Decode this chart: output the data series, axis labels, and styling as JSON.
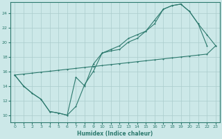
{
  "xlabel": "Humidex (Indice chaleur)",
  "bg_color": "#cce8e8",
  "line_color": "#2d7a6e",
  "grid_color": "#aacccc",
  "xlim": [
    -0.5,
    23.5
  ],
  "ylim": [
    9.0,
    25.5
  ],
  "xticks": [
    0,
    1,
    2,
    3,
    4,
    5,
    6,
    7,
    8,
    9,
    10,
    11,
    12,
    13,
    14,
    15,
    16,
    17,
    18,
    19,
    20,
    21,
    22,
    23
  ],
  "yticks": [
    10,
    12,
    14,
    16,
    18,
    20,
    22,
    24
  ],
  "curve1_x": [
    0,
    1,
    2,
    3,
    4,
    5,
    6,
    7,
    8,
    9,
    10,
    11,
    12,
    13,
    14,
    15,
    16,
    17,
    18,
    19,
    20,
    21,
    22,
    23
  ],
  "curve1_y": [
    15.5,
    14.0,
    13.0,
    12.2,
    10.5,
    10.3,
    10.0,
    15.2,
    14.0,
    17.0,
    18.5,
    18.8,
    19.0,
    20.0,
    20.5,
    21.5,
    23.0,
    24.5,
    25.0,
    25.2,
    24.2,
    22.5,
    21.0,
    19.5
  ],
  "curve2_x": [
    0,
    1,
    2,
    3,
    4,
    5,
    6,
    7,
    8,
    9,
    10,
    11,
    12,
    13,
    14,
    15,
    16,
    17,
    18,
    19,
    20,
    21,
    22
  ],
  "curve2_y": [
    15.5,
    14.0,
    13.0,
    12.2,
    10.5,
    10.3,
    10.0,
    11.2,
    14.2,
    16.0,
    18.5,
    19.0,
    19.5,
    20.5,
    21.0,
    21.5,
    22.5,
    24.5,
    25.0,
    25.2,
    24.2,
    22.5,
    19.5
  ],
  "line3_x": [
    0,
    1,
    2,
    3,
    4,
    5,
    6,
    7,
    8,
    9,
    10,
    11,
    12,
    13,
    14,
    15,
    16,
    17,
    18,
    19,
    20,
    21,
    22,
    23
  ],
  "line3_y": [
    15.5,
    15.63,
    15.76,
    15.89,
    16.02,
    16.15,
    16.28,
    16.41,
    16.54,
    16.67,
    16.8,
    16.93,
    17.06,
    17.19,
    17.32,
    17.45,
    17.58,
    17.71,
    17.84,
    17.97,
    18.1,
    18.23,
    18.36,
    19.5
  ]
}
